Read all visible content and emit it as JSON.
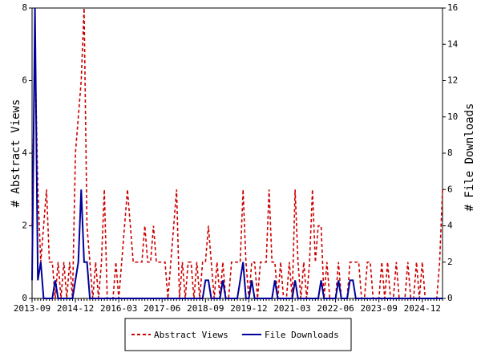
{
  "chart_data": {
    "type": "line",
    "categories": [
      "2013-09",
      null,
      null,
      null,
      null,
      null,
      null,
      null,
      null,
      null,
      null,
      null,
      null,
      null,
      null,
      "2014-12",
      null,
      null,
      null,
      null,
      null,
      null,
      null,
      null,
      null,
      null,
      null,
      null,
      null,
      null,
      "2016-03",
      null,
      null,
      null,
      null,
      null,
      null,
      null,
      null,
      null,
      null,
      null,
      null,
      null,
      null,
      "2017-06",
      null,
      null,
      null,
      null,
      null,
      null,
      null,
      null,
      null,
      null,
      null,
      null,
      null,
      null,
      "2018-09",
      null,
      null,
      null,
      null,
      null,
      null,
      null,
      null,
      null,
      null,
      null,
      null,
      null,
      null,
      "2019-12",
      null,
      null,
      null,
      null,
      null,
      null,
      null,
      null,
      null,
      null,
      null,
      null,
      null,
      null,
      "2021-03",
      null,
      null,
      null,
      null,
      null,
      null,
      null,
      null,
      null,
      null,
      null,
      null,
      null,
      null,
      "2022-06",
      null,
      null,
      null,
      null,
      null,
      null,
      null,
      null,
      null,
      null,
      null,
      null,
      null,
      null,
      "2023-09",
      null,
      null,
      null,
      null,
      null,
      null,
      null,
      null,
      null,
      null,
      null,
      null,
      null,
      null,
      "2024-12",
      null,
      null,
      null,
      null,
      null,
      null,
      null
    ],
    "y_label": "# Abstract Views",
    "y2_label": "# File Downloads",
    "ylim": [
      0,
      8
    ],
    "yticks": [
      0,
      2,
      4,
      6,
      8
    ],
    "y2lim": [
      0,
      16
    ],
    "y2ticks": [
      0,
      2,
      4,
      6,
      8,
      10,
      12,
      14,
      16
    ],
    "grid": false,
    "legend": "bottom",
    "series": [
      {
        "name": "Abstract Views",
        "color": "#cc0000",
        "dashed": true,
        "values": [
          2,
          7,
          3,
          1,
          2,
          3,
          1,
          1,
          0,
          1,
          0,
          1,
          0,
          1,
          0,
          4,
          5,
          6,
          8,
          2,
          1,
          0,
          1,
          0,
          1,
          3,
          0,
          0,
          0,
          1,
          0,
          1,
          2,
          3,
          2,
          1,
          1,
          1,
          1,
          2,
          1,
          1,
          2,
          1,
          1,
          1,
          1,
          0,
          1,
          2,
          3,
          0,
          1,
          0,
          1,
          1,
          0,
          1,
          0,
          1,
          1,
          2,
          1,
          0,
          1,
          0,
          1,
          0,
          0,
          1,
          1,
          1,
          1,
          3,
          1,
          0,
          1,
          1,
          0,
          1,
          1,
          1,
          3,
          1,
          1,
          0,
          1,
          0,
          0,
          1,
          0,
          3,
          1,
          0,
          1,
          0,
          1,
          3,
          1,
          2,
          2,
          0,
          1,
          0,
          0,
          0,
          1,
          0,
          0,
          0,
          1,
          1,
          1,
          1,
          0,
          0,
          1,
          1,
          0,
          0,
          0,
          1,
          0,
          1,
          0,
          0,
          1,
          0,
          0,
          0,
          1,
          0,
          0,
          1,
          0,
          1,
          0,
          0,
          0,
          0,
          0,
          1,
          3
        ]
      },
      {
        "name": "File Downloads",
        "color": "#000099",
        "dashed": false,
        "axis": "y2",
        "values": [
          1,
          16,
          1,
          2,
          0,
          0,
          0,
          0,
          1,
          0,
          0,
          0,
          0,
          0,
          0,
          1,
          2,
          6,
          2,
          2,
          0,
          0,
          0,
          0,
          0,
          0,
          0,
          0,
          0,
          0,
          0,
          0,
          0,
          0,
          0,
          0,
          0,
          0,
          0,
          0,
          0,
          0,
          0,
          0,
          0,
          0,
          0,
          0,
          0,
          0,
          0,
          0,
          0,
          0,
          0,
          0,
          0,
          0,
          0,
          0,
          1,
          1,
          0,
          0,
          0,
          0,
          1,
          0,
          0,
          0,
          0,
          0,
          1,
          2,
          0,
          0,
          1,
          0,
          0,
          0,
          0,
          0,
          0,
          0,
          1,
          0,
          0,
          0,
          0,
          0,
          0,
          1,
          0,
          0,
          0,
          0,
          0,
          0,
          0,
          0,
          1,
          0,
          0,
          0,
          0,
          0,
          1,
          0,
          0,
          0,
          1,
          1,
          0,
          0,
          0,
          0,
          0,
          0,
          0,
          0,
          0,
          0,
          0,
          0,
          0,
          0,
          0,
          0,
          0,
          0,
          0,
          0,
          0,
          0,
          0,
          0,
          0,
          0,
          0,
          0,
          0,
          0,
          0
        ]
      }
    ]
  }
}
